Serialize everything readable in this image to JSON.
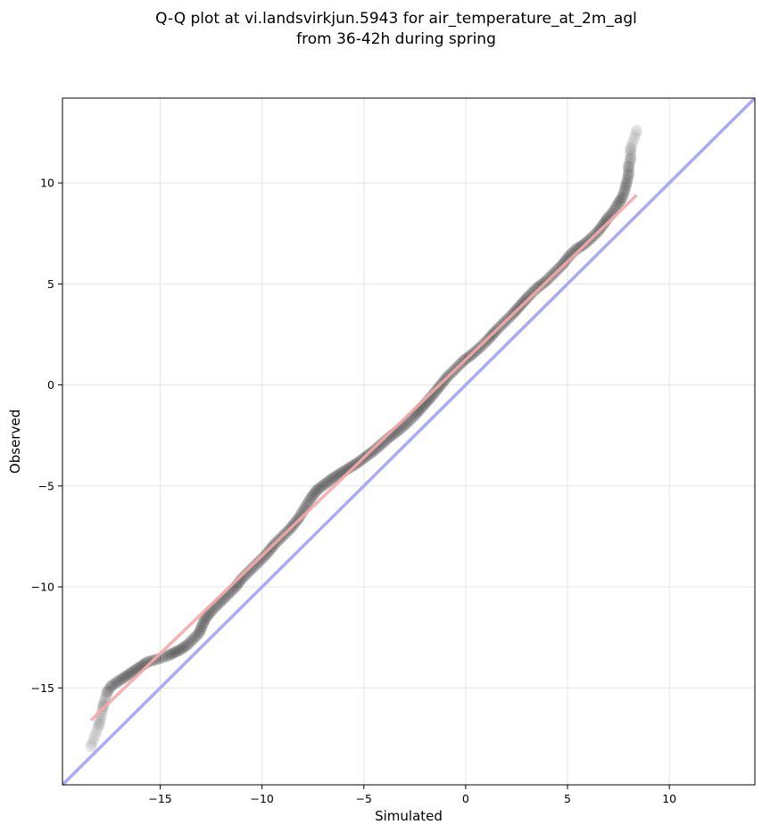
{
  "chart_data": {
    "type": "scatter",
    "title": "Q-Q plot at vi.landsvirkjun.5943 for air_temperature_at_2m_agl",
    "subtitle": "from 36-42h during spring",
    "xlabel": "Simulated",
    "ylabel": "Observed",
    "xlim": [
      -19.8,
      14.2
    ],
    "ylim": [
      -19.8,
      14.2
    ],
    "x_ticks": [
      -15,
      -10,
      -5,
      0,
      5,
      10
    ],
    "y_ticks": [
      -15,
      -10,
      -5,
      0,
      5,
      10
    ],
    "grid": true,
    "reference_line": {
      "from": [
        -19.8,
        -19.8
      ],
      "to": [
        14.2,
        14.2
      ],
      "color": "#aaaaf5"
    },
    "fit_line": {
      "from": [
        -18.4,
        -16.6
      ],
      "to": [
        8.4,
        9.4
      ],
      "color": "#f5a8a8"
    },
    "point_color": "#000000",
    "quantiles": [
      [
        -18.4,
        -17.9
      ],
      [
        -18.0,
        -16.8
      ],
      [
        -17.8,
        -15.9
      ],
      [
        -17.6,
        -15.2
      ],
      [
        -17.4,
        -14.9
      ],
      [
        -17.1,
        -14.7
      ],
      [
        -16.8,
        -14.5
      ],
      [
        -16.5,
        -14.3
      ],
      [
        -16.2,
        -14.1
      ],
      [
        -15.9,
        -13.9
      ],
      [
        -15.6,
        -13.7
      ],
      [
        -15.2,
        -13.6
      ],
      [
        -14.9,
        -13.5
      ],
      [
        -14.6,
        -13.4
      ],
      [
        -14.3,
        -13.25
      ],
      [
        -14.0,
        -13.1
      ],
      [
        -13.7,
        -12.9
      ],
      [
        -13.4,
        -12.6
      ],
      [
        -13.1,
        -12.3
      ],
      [
        -12.8,
        -11.6
      ],
      [
        -12.5,
        -11.2
      ],
      [
        -12.2,
        -10.9
      ],
      [
        -11.9,
        -10.6
      ],
      [
        -11.6,
        -10.3
      ],
      [
        -11.3,
        -10.0
      ],
      [
        -11.0,
        -9.6
      ],
      [
        -10.6,
        -9.2
      ],
      [
        -10.2,
        -8.8
      ],
      [
        -9.8,
        -8.4
      ],
      [
        -9.4,
        -7.9
      ],
      [
        -9.0,
        -7.5
      ],
      [
        -8.6,
        -7.1
      ],
      [
        -8.2,
        -6.6
      ],
      [
        -7.9,
        -6.1
      ],
      [
        -7.6,
        -5.6
      ],
      [
        -7.3,
        -5.2
      ],
      [
        -6.9,
        -4.9
      ],
      [
        -6.5,
        -4.6
      ],
      [
        -6.1,
        -4.35
      ],
      [
        -5.7,
        -4.1
      ],
      [
        -5.3,
        -3.85
      ],
      [
        -4.9,
        -3.55
      ],
      [
        -4.5,
        -3.25
      ],
      [
        -4.1,
        -2.9
      ],
      [
        -3.7,
        -2.55
      ],
      [
        -3.3,
        -2.25
      ],
      [
        -2.9,
        -1.9
      ],
      [
        -2.5,
        -1.5
      ],
      [
        -2.1,
        -1.05
      ],
      [
        -1.7,
        -0.6
      ],
      [
        -1.3,
        -0.1
      ],
      [
        -0.9,
        0.4
      ],
      [
        -0.5,
        0.8
      ],
      [
        -0.1,
        1.2
      ],
      [
        0.3,
        1.5
      ],
      [
        0.7,
        1.85
      ],
      [
        1.1,
        2.25
      ],
      [
        1.5,
        2.7
      ],
      [
        1.9,
        3.1
      ],
      [
        2.3,
        3.5
      ],
      [
        2.7,
        3.95
      ],
      [
        3.1,
        4.4
      ],
      [
        3.5,
        4.8
      ],
      [
        3.9,
        5.1
      ],
      [
        4.3,
        5.5
      ],
      [
        4.7,
        5.9
      ],
      [
        5.1,
        6.4
      ],
      [
        5.4,
        6.7
      ],
      [
        5.8,
        6.95
      ],
      [
        6.2,
        7.3
      ],
      [
        6.5,
        7.6
      ],
      [
        6.8,
        8.0
      ],
      [
        7.0,
        8.3
      ],
      [
        7.2,
        8.5
      ],
      [
        7.5,
        9.0
      ],
      [
        7.7,
        9.3
      ],
      [
        7.8,
        9.6
      ],
      [
        7.9,
        10.0
      ],
      [
        8.0,
        10.4
      ],
      [
        8.0,
        10.8
      ],
      [
        8.1,
        11.2
      ],
      [
        8.1,
        11.7
      ],
      [
        8.4,
        12.6
      ]
    ]
  }
}
